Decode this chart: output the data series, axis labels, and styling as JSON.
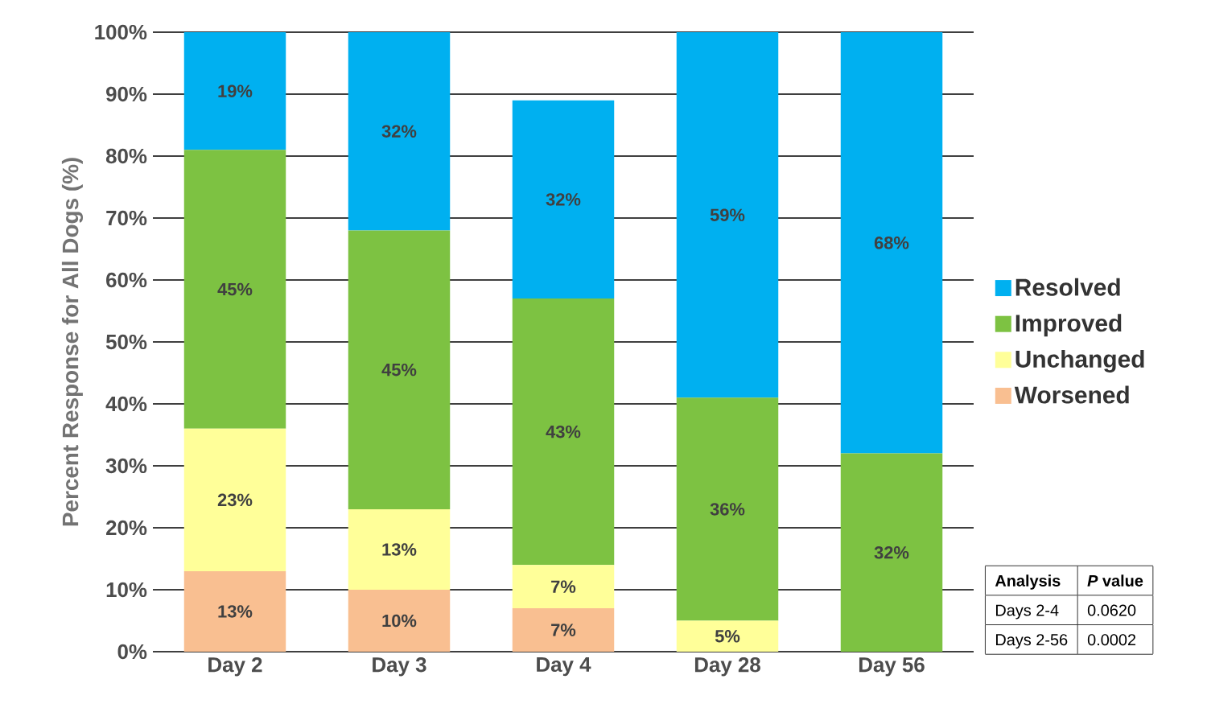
{
  "chart_data": {
    "type": "bar",
    "stacked": true,
    "ylabel": "Percent Response for All Dogs (%)",
    "categories": [
      "Day 2",
      "Day 3",
      "Day 4",
      "Day 28",
      "Day 56"
    ],
    "series": [
      {
        "name": "Worsened",
        "color": "#f9bf91",
        "values": [
          13,
          10,
          7,
          0,
          0
        ],
        "value_labels": [
          "13%",
          "10%",
          "7%",
          null,
          null
        ]
      },
      {
        "name": "Unchanged",
        "color": "#ffff99",
        "values": [
          23,
          13,
          7,
          5,
          0
        ],
        "value_labels": [
          "23%",
          "13%",
          "7%",
          "5%",
          null
        ]
      },
      {
        "name": "Improved",
        "color": "#7dc242",
        "values": [
          45,
          45,
          43,
          36,
          32
        ],
        "value_labels": [
          "45%",
          "45%",
          "43%",
          "36%",
          "32%"
        ]
      },
      {
        "name": "Resolved",
        "color": "#00b0f0",
        "values": [
          19,
          32,
          32,
          59,
          68
        ],
        "value_labels": [
          "19%",
          "32%",
          "32%",
          "59%",
          "68%"
        ]
      }
    ],
    "ylim": [
      0,
      100
    ],
    "yticks": [
      {
        "value": 0,
        "label": "0%"
      },
      {
        "value": 10,
        "label": "10%"
      },
      {
        "value": 20,
        "label": "20%"
      },
      {
        "value": 30,
        "label": "30%"
      },
      {
        "value": 40,
        "label": "40%"
      },
      {
        "value": 50,
        "label": "50%"
      },
      {
        "value": 60,
        "label": "60%"
      },
      {
        "value": 70,
        "label": "70%"
      },
      {
        "value": 80,
        "label": "80%"
      },
      {
        "value": 90,
        "label": "90%"
      },
      {
        "value": 100,
        "label": "100%"
      }
    ],
    "grid": "y",
    "legend": "right",
    "annotations": [
      "**Analysis**",
      "***P* value**",
      "Days 2-4",
      "0.0620",
      "Days 2-56",
      "0.0002"
    ]
  }
}
